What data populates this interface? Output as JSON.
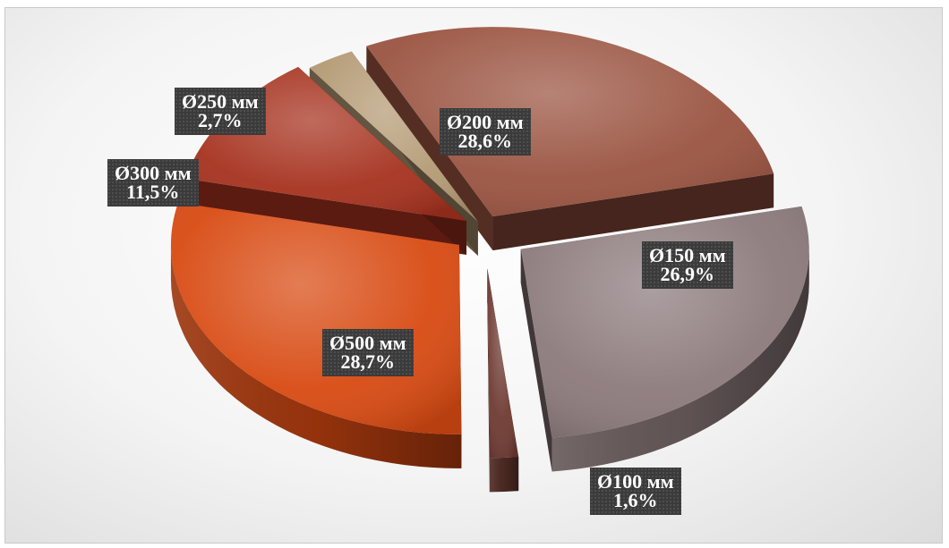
{
  "chart_data": {
    "type": "pie",
    "title": "",
    "categories": [
      "Ø200 мм",
      "Ø150 мм",
      "Ø100 мм",
      "Ø500 мм",
      "Ø300 мм",
      "Ø250 мм"
    ],
    "values": [
      28.6,
      26.9,
      1.6,
      28.7,
      11.5,
      2.7
    ],
    "value_labels": [
      "28,6%",
      "26,9%",
      "1,6%",
      "28,7%",
      "11,5%",
      "2,7%"
    ],
    "colors": [
      "#9a5340",
      "#8c7a7c",
      "#6e3a32",
      "#d84a12",
      "#a6311e",
      "#b49a74"
    ],
    "style": "3d-exploded",
    "legend": "none"
  }
}
